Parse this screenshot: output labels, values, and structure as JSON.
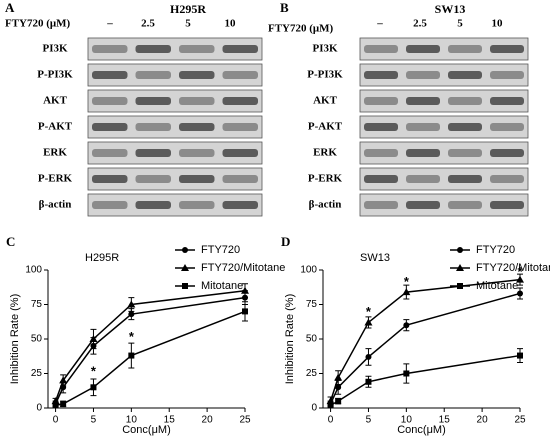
{
  "panels": [
    {
      "panel_label": "A",
      "title": "H295R",
      "treatment": "FTY720 (μM)",
      "doses": [
        "–",
        "2.5",
        "5",
        "10"
      ],
      "proteins": [
        "PI3K",
        "P-PI3K",
        "AKT",
        "P-AKT",
        "ERK",
        "P-ERK",
        "β-actin"
      ]
    },
    {
      "panel_label": "B",
      "title": "SW13",
      "treatment": "FTY720 (μM)",
      "doses": [
        "–",
        "2.5",
        "5",
        "10"
      ],
      "proteins": [
        "PI3K",
        "P-PI3K",
        "AKT",
        "P-AKT",
        "ERK",
        "P-ERK",
        "β-actin"
      ]
    }
  ],
  "chart_data": [
    {
      "type": "line",
      "panel_label": "C",
      "title": "H295R",
      "x_label": "Conc(μM)",
      "y_label": "Inhibition Rate (%)",
      "x": [
        0,
        1,
        5,
        10,
        25
      ],
      "xlim": [
        -1,
        25
      ],
      "xticks": [
        0,
        5,
        10,
        15,
        20,
        25
      ],
      "ylim": [
        0,
        100
      ],
      "yticks": [
        0,
        25,
        50,
        75,
        100
      ],
      "legend": "upper right",
      "series": [
        {
          "name": "FTY720",
          "marker": "circle",
          "color": "#000000",
          "values": [
            3,
            15,
            45,
            68,
            80
          ],
          "errors": [
            2,
            4,
            6,
            4,
            5
          ]
        },
        {
          "name": "FTY720/Mitotane",
          "marker": "triangle",
          "color": "#000000",
          "values": [
            5,
            20,
            50,
            75,
            85
          ],
          "errors": [
            2,
            4,
            7,
            5,
            5
          ]
        },
        {
          "name": "Mitotane",
          "marker": "square",
          "color": "#000000",
          "values": [
            2,
            3,
            15,
            38,
            70
          ],
          "errors": [
            2,
            2,
            6,
            9,
            7
          ]
        }
      ],
      "annotations": [
        {
          "text": "*",
          "x": 5,
          "y": 26
        },
        {
          "text": "*",
          "x": 10,
          "y": 51
        }
      ]
    },
    {
      "type": "line",
      "panel_label": "D",
      "title": "SW13",
      "x_label": "Conc(μM)",
      "y_label": "Inhibition Rate (%)",
      "x": [
        0,
        1,
        5,
        10,
        25
      ],
      "xlim": [
        -1,
        25
      ],
      "xticks": [
        0,
        5,
        10,
        15,
        20,
        25
      ],
      "ylim": [
        0,
        100
      ],
      "yticks": [
        0,
        25,
        50,
        75,
        100
      ],
      "legend": "upper right",
      "series": [
        {
          "name": "FTY720",
          "marker": "circle",
          "color": "#000000",
          "values": [
            3,
            15,
            37,
            60,
            83
          ],
          "errors": [
            2,
            5,
            6,
            4,
            4
          ]
        },
        {
          "name": "FTY720/Mitotane",
          "marker": "triangle",
          "color": "#000000",
          "values": [
            5,
            22,
            62,
            84,
            93
          ],
          "errors": [
            3,
            5,
            4,
            5,
            4
          ]
        },
        {
          "name": "Mitotane",
          "marker": "square",
          "color": "#000000",
          "values": [
            2,
            5,
            19,
            25,
            38
          ],
          "errors": [
            2,
            2,
            4,
            7,
            5
          ]
        }
      ],
      "annotations": [
        {
          "text": "*",
          "x": 5,
          "y": 69
        },
        {
          "text": "*",
          "x": 10,
          "y": 91
        },
        {
          "text": "*",
          "x": 25,
          "y": 98
        }
      ]
    }
  ]
}
